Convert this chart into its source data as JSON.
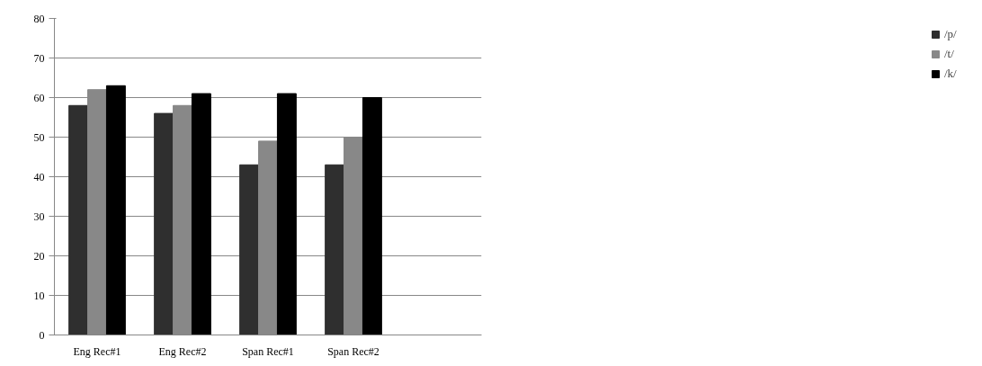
{
  "chart_data": {
    "type": "bar",
    "categories": [
      "Eng Rec#1",
      "Eng Rec#2",
      "Span Rec#1",
      "Span Rec#2",
      null
    ],
    "series": [
      {
        "name": "/p/",
        "color": "#2f2f2f",
        "values": [
          58,
          56,
          43,
          43,
          null
        ]
      },
      {
        "name": "/t/",
        "color": "#888888",
        "values": [
          62,
          58,
          49,
          50,
          null
        ]
      },
      {
        "name": "/k/",
        "color": "#000000",
        "values": [
          63,
          61,
          61,
          60,
          null
        ]
      }
    ],
    "ylim": [
      0,
      80
    ],
    "yticks": [
      0,
      10,
      20,
      30,
      40,
      50,
      60,
      70,
      80
    ],
    "grid": "y",
    "legend": "right"
  }
}
